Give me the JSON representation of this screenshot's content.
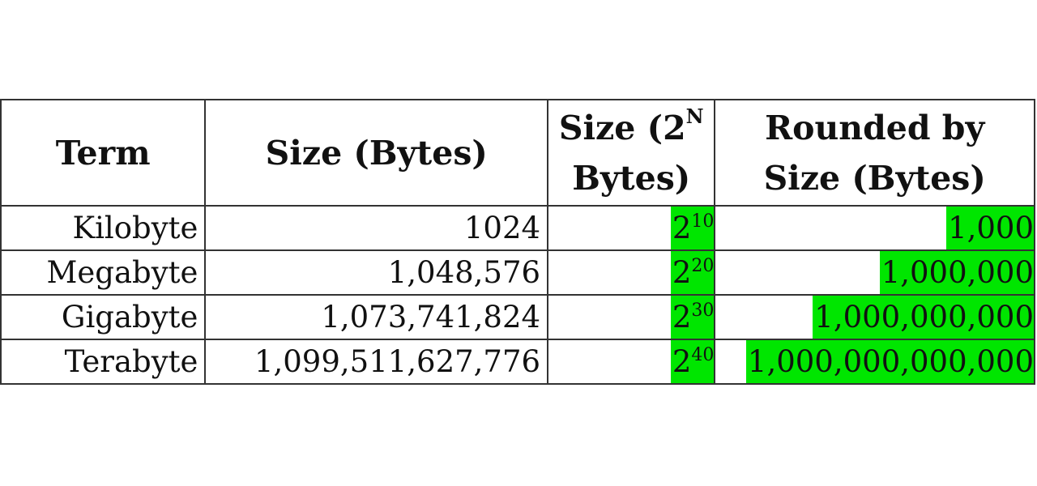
{
  "table": {
    "headers": {
      "term": "Term",
      "size_bytes": "Size (Bytes)",
      "power_prefix": "Size (2",
      "power_exp": "N",
      "power_suffix": "Bytes)",
      "rounded_line1": "Rounded by",
      "rounded_line2": "Size (Bytes)"
    },
    "rows": [
      {
        "term": "Kilobyte",
        "size": "1024",
        "power_base": "2",
        "power_exp": "10",
        "rounded": "1,000"
      },
      {
        "term": "Megabyte",
        "size": "1,048,576",
        "power_base": "2",
        "power_exp": "20",
        "rounded": "1,000,000"
      },
      {
        "term": "Gigabyte",
        "size": "1,073,741,824",
        "power_base": "2",
        "power_exp": "30",
        "rounded": "1,000,000,000"
      },
      {
        "term": "Terabyte",
        "size": "1,099,511,627,776",
        "power_base": "2",
        "power_exp": "40",
        "rounded": "1,000,000,000,000"
      }
    ],
    "highlight_color": "#00e600",
    "border_color": "#333333"
  }
}
